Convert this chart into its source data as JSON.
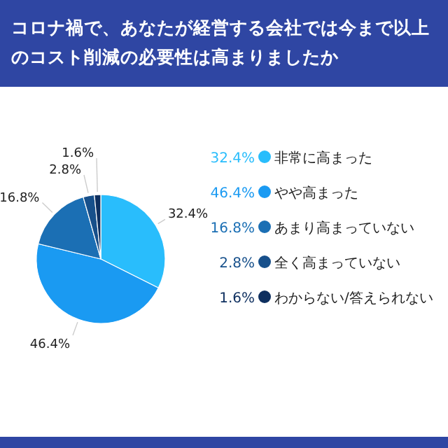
{
  "chart_data": {
    "type": "pie",
    "title": "コロナ禍で、あなたが経営する会社では今まで以上のコスト削減の必要性は高まりましたか",
    "categories": [
      "非常に高まった",
      "やや高まった",
      "あまり高まっていない",
      "全く高まっていない",
      "わからない/答えられない"
    ],
    "values": [
      32.4,
      46.4,
      16.8,
      2.8,
      1.6
    ],
    "value_labels": [
      "32.4%",
      "46.4%",
      "16.8%",
      "2.8%",
      "1.6%"
    ],
    "colors": [
      "#29bdfc",
      "#1a9af2",
      "#1b6fb4",
      "#17508b",
      "#0e2f5f"
    ],
    "legend": "right"
  }
}
